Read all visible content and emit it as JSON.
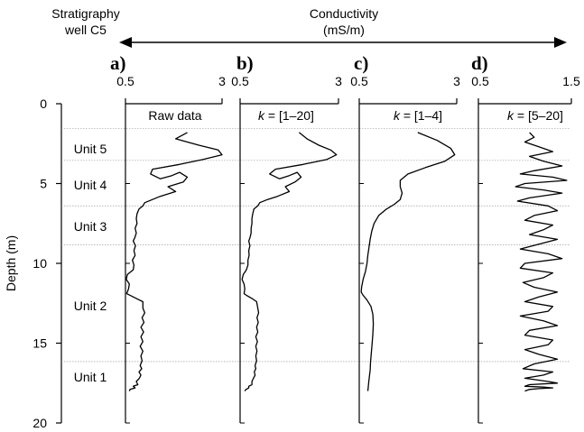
{
  "header": {
    "strat_title_1": "Stratigraphy",
    "strat_title_2": "well C5",
    "cond_title_1": "Conductivity",
    "cond_title_2": "(mS/m)"
  },
  "depth_axis": {
    "label": "Depth (m)",
    "ticks": [
      "0",
      "5",
      "10",
      "15",
      "20"
    ]
  },
  "units": [
    "Unit 5",
    "Unit 4",
    "Unit 3",
    "Unit 2",
    "Unit 1"
  ],
  "colors": {
    "line": "#000000",
    "boundary": "#a0a0a0"
  },
  "chart_data": [
    {
      "type": "line",
      "panel": "a)",
      "title": "Raw data",
      "xlim": [
        0.5,
        3
      ],
      "ylim": [
        0,
        20
      ],
      "y_inverted": true,
      "x_ticks": [
        "0.5",
        "3"
      ],
      "series": [
        {
          "x": [
            2.1,
            1.8,
            2.4,
            2.9,
            3.0,
            2.5,
            1.9,
            1.2,
            1.15,
            1.4,
            1.7,
            1.9,
            2.1,
            2.0,
            1.6,
            1.8,
            1.4,
            1.2,
            1.0,
            0.95,
            0.85,
            0.8,
            0.78,
            0.8,
            0.75,
            0.78,
            0.74,
            0.7,
            0.76,
            0.72,
            0.75,
            0.68,
            0.72,
            0.7,
            0.55,
            0.52,
            0.6,
            0.58,
            0.53,
            0.62,
            0.78,
            0.95,
            0.95,
            1.0,
            0.93,
            0.98,
            0.9,
            0.97,
            0.9,
            0.95,
            0.88,
            0.95,
            0.9,
            0.93,
            0.88,
            0.92,
            0.85,
            0.9,
            0.86,
            0.78,
            0.82,
            0.7,
            0.75,
            0.62,
            0.6
          ],
          "y": [
            1.8,
            2.2,
            2.6,
            2.9,
            3.2,
            3.5,
            3.8,
            4.1,
            4.4,
            4.7,
            4.5,
            4.3,
            4.6,
            4.9,
            5.2,
            5.5,
            5.8,
            6.0,
            6.2,
            6.4,
            6.6,
            6.9,
            7.2,
            7.5,
            7.8,
            8.1,
            8.4,
            8.6,
            8.9,
            9.2,
            9.5,
            9.8,
            10.1,
            10.4,
            10.7,
            11.0,
            11.3,
            11.6,
            11.9,
            12.0,
            12.2,
            12.4,
            12.8,
            13.1,
            13.4,
            13.7,
            14.0,
            14.3,
            14.6,
            14.9,
            15.2,
            15.5,
            15.8,
            16.1,
            16.4,
            16.6,
            16.8,
            17.0,
            17.2,
            17.4,
            17.6,
            17.7,
            17.8,
            17.9,
            18.0
          ]
        }
      ]
    },
    {
      "type": "line",
      "panel": "b)",
      "title": "k = [1–20]",
      "xlim": [
        0.5,
        3
      ],
      "ylim": [
        0,
        20
      ],
      "y_inverted": true,
      "x_ticks": [
        "0.5",
        "3"
      ],
      "series": [
        {
          "x": [
            2.0,
            2.2,
            2.5,
            2.8,
            2.95,
            2.7,
            2.1,
            1.4,
            1.25,
            1.5,
            1.75,
            1.95,
            2.05,
            1.9,
            1.65,
            1.75,
            1.45,
            1.2,
            1.0,
            0.95,
            0.85,
            0.82,
            0.8,
            0.8,
            0.78,
            0.78,
            0.75,
            0.72,
            0.75,
            0.72,
            0.73,
            0.7,
            0.7,
            0.66,
            0.58,
            0.55,
            0.6,
            0.62,
            0.6,
            0.66,
            0.8,
            0.92,
            0.95,
            0.97,
            0.93,
            0.96,
            0.92,
            0.95,
            0.9,
            0.94,
            0.9,
            0.93,
            0.9,
            0.92,
            0.88,
            0.9,
            0.86,
            0.88,
            0.84,
            0.8,
            0.8,
            0.72,
            0.72,
            0.65,
            0.62
          ],
          "y": [
            1.8,
            2.2,
            2.6,
            2.9,
            3.2,
            3.5,
            3.8,
            4.1,
            4.4,
            4.7,
            4.5,
            4.3,
            4.6,
            4.9,
            5.2,
            5.5,
            5.8,
            6.0,
            6.2,
            6.4,
            6.6,
            6.9,
            7.2,
            7.5,
            7.8,
            8.1,
            8.4,
            8.6,
            8.9,
            9.2,
            9.5,
            9.8,
            10.1,
            10.4,
            10.7,
            11.0,
            11.3,
            11.6,
            11.9,
            12.0,
            12.2,
            12.4,
            12.8,
            13.1,
            13.4,
            13.7,
            14.0,
            14.3,
            14.6,
            14.9,
            15.2,
            15.5,
            15.8,
            16.1,
            16.4,
            16.6,
            16.8,
            17.0,
            17.2,
            17.4,
            17.6,
            17.7,
            17.8,
            17.9,
            18.0
          ]
        }
      ]
    },
    {
      "type": "line",
      "panel": "c)",
      "title": "k = [1–4]",
      "xlim": [
        0.5,
        3
      ],
      "ylim": [
        0,
        20
      ],
      "y_inverted": true,
      "x_ticks": [
        "0.5",
        "3"
      ],
      "series": [
        {
          "x": [
            2.0,
            2.5,
            2.85,
            2.95,
            2.7,
            2.2,
            1.75,
            1.55,
            1.55,
            1.6,
            1.55,
            1.4,
            1.2,
            1.0,
            0.88,
            0.82,
            0.78,
            0.75,
            0.72,
            0.7,
            0.66,
            0.6,
            0.56,
            0.55,
            0.6,
            0.7,
            0.8,
            0.85,
            0.86,
            0.85,
            0.83,
            0.81,
            0.79,
            0.78,
            0.76,
            0.74,
            0.73,
            0.72
          ],
          "y": [
            1.8,
            2.3,
            2.8,
            3.2,
            3.6,
            4.0,
            4.4,
            4.8,
            5.2,
            5.6,
            6.0,
            6.3,
            6.6,
            7.0,
            7.5,
            8.0,
            8.5,
            9.0,
            9.5,
            10.0,
            10.5,
            11.0,
            11.5,
            11.8,
            12.0,
            12.3,
            12.7,
            13.2,
            13.8,
            14.4,
            15.0,
            15.6,
            16.2,
            16.7,
            17.1,
            17.5,
            17.8,
            18.0
          ]
        }
      ]
    },
    {
      "type": "line",
      "panel": "d)",
      "title": "k = [5–20]",
      "xlim": [
        0.5,
        1.5
      ],
      "ylim": [
        0,
        20
      ],
      "y_inverted": true,
      "x_ticks": [
        "0.5",
        "1.5"
      ],
      "series": [
        {
          "x": [
            1.05,
            1.1,
            1.0,
            1.15,
            1.3,
            1.05,
            1.2,
            1.4,
            1.1,
            0.95,
            1.3,
            1.45,
            1.0,
            0.9,
            1.2,
            1.4,
            1.05,
            0.92,
            1.25,
            1.35,
            1.1,
            1.0,
            1.3,
            1.2,
            1.05,
            1.35,
            1.15,
            0.95,
            1.25,
            1.4,
            1.0,
            0.95,
            1.3,
            1.2,
            0.98,
            1.1,
            1.35,
            1.15,
            1.0,
            1.3,
            1.25,
            0.95,
            1.2,
            1.35,
            1.05,
            1.0,
            1.3,
            1.25,
            1.0,
            1.15,
            1.35,
            1.1,
            0.98,
            1.3,
            1.2,
            1.0,
            1.25,
            1.35,
            1.05,
            1.0,
            1.2,
            1.3,
            1.15,
            1.05,
            1.0
          ],
          "y": [
            1.8,
            2.1,
            2.4,
            2.7,
            3.0,
            3.3,
            3.6,
            3.9,
            4.2,
            4.4,
            4.6,
            4.8,
            5.0,
            5.2,
            5.4,
            5.6,
            5.9,
            6.1,
            6.4,
            6.7,
            7.0,
            7.3,
            7.6,
            7.9,
            8.2,
            8.5,
            8.8,
            9.1,
            9.4,
            9.7,
            10.0,
            10.3,
            10.6,
            10.9,
            11.2,
            11.5,
            11.8,
            12.1,
            12.4,
            12.7,
            13.0,
            13.3,
            13.6,
            13.9,
            14.2,
            14.5,
            14.8,
            15.1,
            15.4,
            15.7,
            16.0,
            16.3,
            16.6,
            16.8,
            17.0,
            17.2,
            17.4,
            17.5,
            17.6,
            17.7,
            17.75,
            17.8,
            17.85,
            17.9,
            18.0
          ]
        }
      ]
    }
  ]
}
